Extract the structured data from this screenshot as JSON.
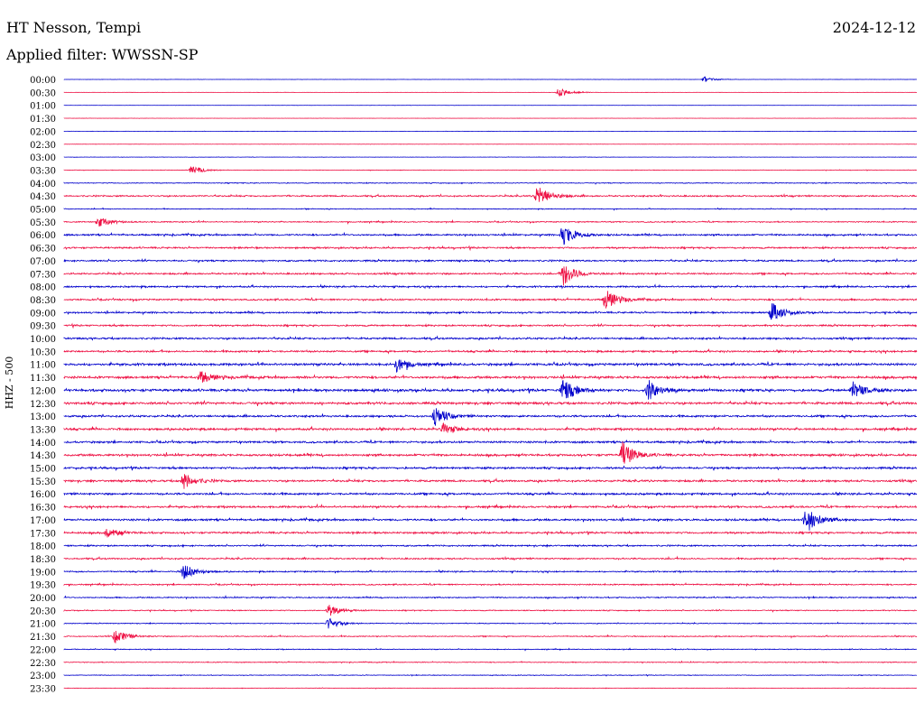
{
  "header": {
    "station": "HT Nesson, Tempi",
    "date": "2024-12-12",
    "filter": "Applied filter: WWSSN-SP"
  },
  "chart_data": {
    "type": "line",
    "title": "HT Nesson, Tempi",
    "subtitle": "Applied filter: WWSSN-SP",
    "ylabel": "HHZ - 500",
    "colors": [
      "#0000cc",
      "#ee1144"
    ],
    "rows": [
      "00:00",
      "00:30",
      "01:00",
      "01:30",
      "02:00",
      "02:30",
      "03:00",
      "03:30",
      "04:00",
      "04:30",
      "05:00",
      "05:30",
      "06:00",
      "06:30",
      "07:00",
      "07:30",
      "08:00",
      "08:30",
      "09:00",
      "09:30",
      "10:00",
      "10:30",
      "11:00",
      "11:30",
      "12:00",
      "12:30",
      "13:00",
      "13:30",
      "14:00",
      "14:30",
      "15:00",
      "15:30",
      "16:00",
      "16:30",
      "17:00",
      "17:30",
      "18:00",
      "18:30",
      "19:00",
      "19:30",
      "20:00",
      "20:30",
      "21:00",
      "21:30",
      "22:00",
      "22:30",
      "23:00",
      "23:30"
    ],
    "noise": [
      0.12,
      0.12,
      0.12,
      0.12,
      0.08,
      0.12,
      0.2,
      0.3,
      0.5,
      0.9,
      0.5,
      0.7,
      1.0,
      1.0,
      1.0,
      1.0,
      1.0,
      1.0,
      1.0,
      1.0,
      1.1,
      1.1,
      1.4,
      1.4,
      1.5,
      1.4,
      1.2,
      1.3,
      1.2,
      1.3,
      1.2,
      1.2,
      1.2,
      1.2,
      1.2,
      1.1,
      0.9,
      0.9,
      0.8,
      0.8,
      0.7,
      0.6,
      0.5,
      0.6,
      0.5,
      0.5,
      0.4,
      0.3
    ],
    "events": [
      {
        "row": 0,
        "x": 0.75,
        "amp": 3
      },
      {
        "row": 1,
        "x": 0.58,
        "amp": 5
      },
      {
        "row": 7,
        "x": 0.15,
        "amp": 5
      },
      {
        "row": 9,
        "x": 0.555,
        "amp": 14
      },
      {
        "row": 11,
        "x": 0.04,
        "amp": 6
      },
      {
        "row": 12,
        "x": 0.585,
        "amp": 12
      },
      {
        "row": 15,
        "x": 0.585,
        "amp": 14
      },
      {
        "row": 17,
        "x": 0.635,
        "amp": 12
      },
      {
        "row": 18,
        "x": 0.83,
        "amp": 11
      },
      {
        "row": 22,
        "x": 0.39,
        "amp": 8
      },
      {
        "row": 23,
        "x": 0.16,
        "amp": 7
      },
      {
        "row": 24,
        "x": 0.585,
        "amp": 14
      },
      {
        "row": 24,
        "x": 0.685,
        "amp": 12
      },
      {
        "row": 24,
        "x": 0.925,
        "amp": 10
      },
      {
        "row": 26,
        "x": 0.435,
        "amp": 10
      },
      {
        "row": 27,
        "x": 0.445,
        "amp": 6
      },
      {
        "row": 29,
        "x": 0.655,
        "amp": 15
      },
      {
        "row": 31,
        "x": 0.14,
        "amp": 9
      },
      {
        "row": 34,
        "x": 0.87,
        "amp": 16
      },
      {
        "row": 35,
        "x": 0.05,
        "amp": 6
      },
      {
        "row": 38,
        "x": 0.14,
        "amp": 9
      },
      {
        "row": 41,
        "x": 0.31,
        "amp": 7
      },
      {
        "row": 42,
        "x": 0.31,
        "amp": 6
      },
      {
        "row": 43,
        "x": 0.06,
        "amp": 8
      }
    ]
  }
}
